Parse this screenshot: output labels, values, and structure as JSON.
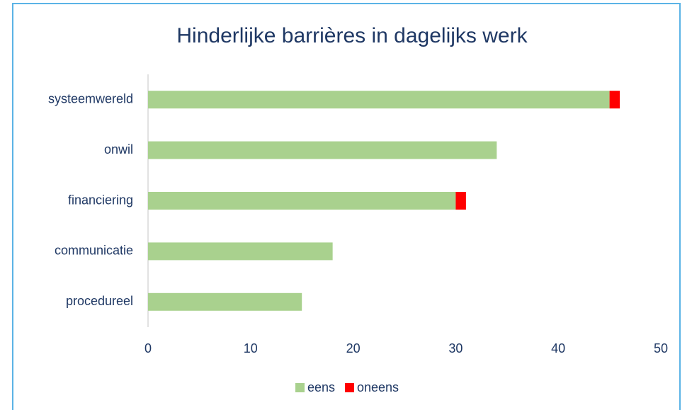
{
  "chart_data": {
    "type": "bar",
    "orientation": "horizontal",
    "stacked": true,
    "title": "Hinderlijke  barrières in dagelijks werk",
    "categories": [
      "systeemwereld",
      "onwil",
      "financiering",
      "communicatie",
      "procedureel"
    ],
    "series": [
      {
        "name": "eens",
        "color": "#a9d18e",
        "values": [
          45,
          34,
          30,
          18,
          15
        ]
      },
      {
        "name": "oneens",
        "color": "#ff0000",
        "values": [
          1,
          0,
          1,
          0,
          0
        ]
      }
    ],
    "xlim": [
      0,
      50
    ],
    "xticks": [
      0,
      10,
      20,
      30,
      40,
      50
    ],
    "grid": false,
    "legend": "bottom"
  }
}
